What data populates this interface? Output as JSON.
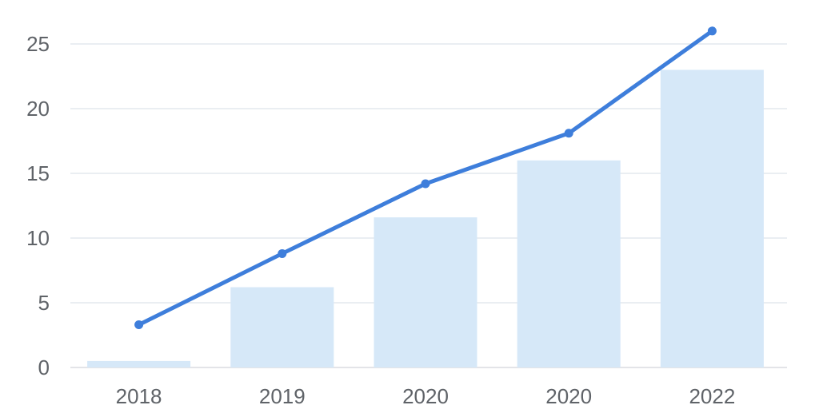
{
  "colors": {
    "bar": "#d6e8f8",
    "line": "#3e7edb",
    "point": "#3e7edb",
    "grid": "#e3e8ee",
    "tick_text": "#5f6368"
  },
  "chart_data": {
    "type": "bar",
    "title": "",
    "xlabel": "",
    "ylabel": "",
    "categories": [
      "2018",
      "2019",
      "2020",
      "2020",
      "2022"
    ],
    "ylim": [
      0,
      25
    ],
    "yticks": [
      0,
      5,
      10,
      15,
      20,
      25
    ],
    "grid": true,
    "series": [
      {
        "type": "bar",
        "values": [
          0.5,
          6.2,
          11.6,
          16.0,
          23.0
        ]
      },
      {
        "type": "line",
        "values": [
          3.3,
          8.8,
          14.2,
          18.1,
          26.0
        ]
      }
    ]
  }
}
